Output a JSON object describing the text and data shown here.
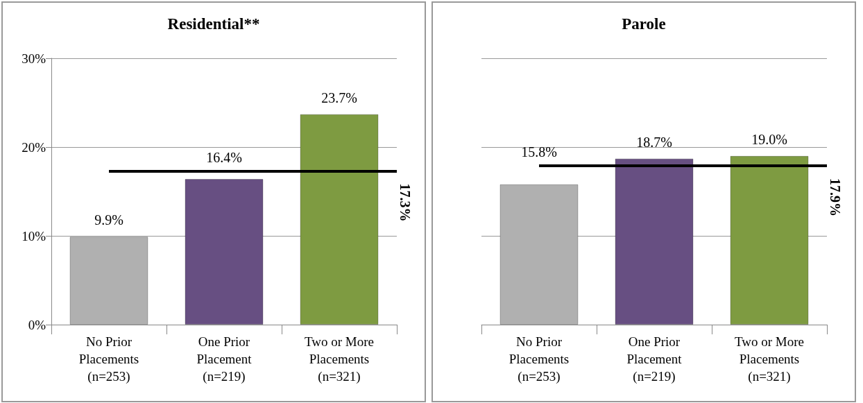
{
  "chart_data": [
    {
      "type": "bar",
      "title": "Residential**",
      "categories": [
        "No Prior\nPlacements\n(n=253)",
        "One Prior\nPlacement\n(n=219)",
        "Two or More\nPlacements\n(n=321)"
      ],
      "values": [
        9.9,
        16.4,
        23.7
      ],
      "colors": [
        "#b0b0b0",
        "#674f82",
        "#7e9b41"
      ],
      "value_labels": [
        "9.9%",
        "16.4%",
        "23.7%"
      ],
      "ylim": [
        0,
        30
      ],
      "yticks": [
        {
          "value": 0,
          "label": "0%"
        },
        {
          "value": 10,
          "label": "10%"
        },
        {
          "value": 20,
          "label": "20%"
        },
        {
          "value": 30,
          "label": "30%"
        }
      ],
      "grid": "y",
      "ref_lines": [
        {
          "axis": "y",
          "value": 17.3,
          "label": "17.3%",
          "color": "#000000"
        }
      ]
    },
    {
      "type": "bar",
      "title": "Parole",
      "categories": [
        "No Prior\nPlacements\n(n=253)",
        "One Prior\nPlacement\n(n=219)",
        "Two or More\nPlacements\n(n=321)"
      ],
      "values": [
        15.8,
        18.7,
        19.0
      ],
      "colors": [
        "#b0b0b0",
        "#674f82",
        "#7e9b41"
      ],
      "value_labels": [
        "15.8%",
        "18.7%",
        "19.0%"
      ],
      "ylim": [
        0,
        30
      ],
      "yticks": [
        {
          "value": 0,
          "label": null
        },
        {
          "value": 10,
          "label": null
        },
        {
          "value": 20,
          "label": null
        },
        {
          "value": 30,
          "label": null
        }
      ],
      "grid": "y",
      "tick_labels": "x",
      "ref_lines": [
        {
          "axis": "y",
          "value": 17.9,
          "label": "17.9%",
          "color": "#000000"
        }
      ]
    }
  ]
}
